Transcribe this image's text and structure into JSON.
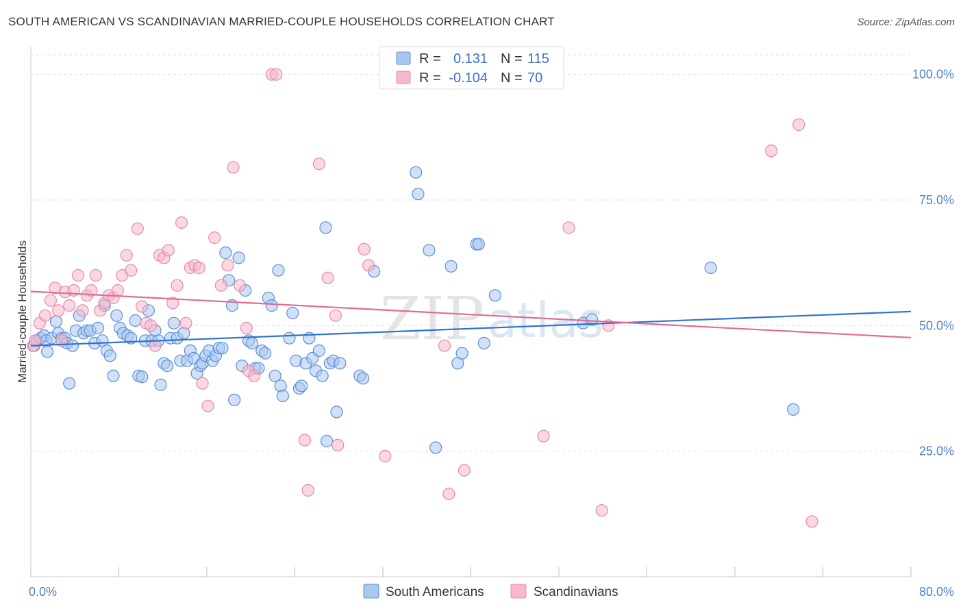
{
  "title": "SOUTH AMERICAN VS SCANDINAVIAN MARRIED-COUPLE HOUSEHOLDS CORRELATION CHART",
  "source": "Source: ZipAtlas.com",
  "watermark": {
    "zip": "ZIP",
    "atlas": "atlas"
  },
  "colors": {
    "blue_fill": "#a9c8f0",
    "blue_stroke": "#5b8ed6",
    "blue_line": "#2f72d0",
    "pink_fill": "#f5b8cc",
    "pink_stroke": "#e889a8",
    "pink_line": "#e06b95",
    "grid": "#dddddd",
    "axis_text": "#4a7fc8"
  },
  "legend": {
    "rows": [
      {
        "r_label": "R =",
        "r_value": "0.131",
        "n_label": "N =",
        "n_value": "115"
      },
      {
        "r_label": "R =",
        "r_value": "-0.104",
        "n_label": "N =",
        "n_value": "70"
      }
    ]
  },
  "chart_data": {
    "type": "scatter",
    "ylabel": "Married-couple Households",
    "xlim": [
      0,
      80
    ],
    "ylim": [
      0,
      105
    ],
    "x_tick_labels": [
      "0.0%",
      "80.0%"
    ],
    "y_ticks": [
      25,
      50,
      75,
      100
    ],
    "y_tick_labels": [
      "25.0%",
      "50.0%",
      "75.0%",
      "100.0%"
    ],
    "grid": "horizontal dashed",
    "legend_position": "top-center",
    "series": [
      {
        "name": "South Americans",
        "color": "#a9c8f0",
        "trend": {
          "x": [
            0,
            80
          ],
          "y": [
            46.0,
            52.8
          ]
        },
        "points": [
          [
            0.3,
            46
          ],
          [
            0.6,
            47
          ],
          [
            0.9,
            47.5
          ],
          [
            1.2,
            48
          ],
          [
            1.4,
            47
          ],
          [
            1.5,
            44.8
          ],
          [
            1.9,
            47.5
          ],
          [
            2.3,
            50.8
          ],
          [
            2.5,
            48.5
          ],
          [
            2.8,
            47.5
          ],
          [
            3.1,
            47.5
          ],
          [
            3.3,
            46.5
          ],
          [
            3.5,
            38.5
          ],
          [
            3.8,
            46
          ],
          [
            4.1,
            49
          ],
          [
            4.4,
            52
          ],
          [
            4.8,
            48.5
          ],
          [
            5.1,
            49
          ],
          [
            5.4,
            49
          ],
          [
            5.8,
            46.5
          ],
          [
            6.1,
            49.5
          ],
          [
            6.5,
            47
          ],
          [
            6.7,
            54
          ],
          [
            6.9,
            45
          ],
          [
            7.2,
            44
          ],
          [
            7.5,
            40
          ],
          [
            7.8,
            52
          ],
          [
            8.1,
            49.5
          ],
          [
            8.4,
            48.5
          ],
          [
            8.8,
            48
          ],
          [
            9.1,
            47.5
          ],
          [
            9.5,
            51
          ],
          [
            9.8,
            40
          ],
          [
            10.1,
            39.8
          ],
          [
            10.4,
            47
          ],
          [
            10.7,
            53
          ],
          [
            11.0,
            47
          ],
          [
            11.3,
            49
          ],
          [
            11.6,
            47
          ],
          [
            11.8,
            38.2
          ],
          [
            12.1,
            42.5
          ],
          [
            12.4,
            42
          ],
          [
            12.7,
            47.5
          ],
          [
            13.0,
            50.5
          ],
          [
            13.3,
            47.5
          ],
          [
            13.6,
            43
          ],
          [
            13.9,
            48.5
          ],
          [
            14.2,
            43
          ],
          [
            14.5,
            45
          ],
          [
            14.8,
            43.5
          ],
          [
            15.1,
            40.5
          ],
          [
            15.4,
            42
          ],
          [
            15.6,
            42.5
          ],
          [
            15.9,
            44
          ],
          [
            16.2,
            45
          ],
          [
            16.5,
            43
          ],
          [
            16.8,
            44
          ],
          [
            17.1,
            45.5
          ],
          [
            17.4,
            45.5
          ],
          [
            17.7,
            64.5
          ],
          [
            18.0,
            59
          ],
          [
            18.3,
            54
          ],
          [
            18.5,
            35.2
          ],
          [
            18.9,
            63.5
          ],
          [
            19.2,
            42
          ],
          [
            19.5,
            57
          ],
          [
            19.8,
            47
          ],
          [
            20.1,
            46.5
          ],
          [
            20.4,
            41.5
          ],
          [
            20.7,
            41.5
          ],
          [
            21.0,
            45
          ],
          [
            21.3,
            44.5
          ],
          [
            21.6,
            55.5
          ],
          [
            21.9,
            54
          ],
          [
            22.2,
            40
          ],
          [
            22.5,
            61
          ],
          [
            22.7,
            38
          ],
          [
            22.9,
            36
          ],
          [
            23.5,
            47.5
          ],
          [
            23.8,
            52.5
          ],
          [
            24.1,
            43
          ],
          [
            24.4,
            37.5
          ],
          [
            24.6,
            38
          ],
          [
            25.0,
            42.5
          ],
          [
            25.3,
            47.5
          ],
          [
            25.6,
            43.5
          ],
          [
            25.9,
            41
          ],
          [
            26.2,
            45
          ],
          [
            26.5,
            40
          ],
          [
            26.8,
            69.5
          ],
          [
            26.9,
            27
          ],
          [
            27.2,
            42.5
          ],
          [
            27.5,
            43
          ],
          [
            27.8,
            32.8
          ],
          [
            28.1,
            42.5
          ],
          [
            29.9,
            40
          ],
          [
            30.2,
            39.5
          ],
          [
            31.2,
            60.8
          ],
          [
            35.0,
            80.5
          ],
          [
            35.2,
            76.2
          ],
          [
            36.2,
            65
          ],
          [
            36.8,
            25.7
          ],
          [
            38.2,
            61.8
          ],
          [
            38.8,
            42.5
          ],
          [
            39.2,
            44.5
          ],
          [
            40.5,
            66.2
          ],
          [
            40.7,
            66.2
          ],
          [
            41.2,
            46.5
          ],
          [
            42.2,
            56
          ],
          [
            50.2,
            50.5
          ],
          [
            51.0,
            51.2
          ],
          [
            61.8,
            61.5
          ],
          [
            69.3,
            33.3
          ]
        ]
      },
      {
        "name": "Scandinavians",
        "color": "#f5b8cc",
        "trend": {
          "x": [
            0,
            80
          ],
          "y": [
            56.8,
            47.6
          ]
        },
        "points": [
          [
            0.2,
            46
          ],
          [
            0.4,
            47
          ],
          [
            0.8,
            50.5
          ],
          [
            1.3,
            52
          ],
          [
            1.8,
            55
          ],
          [
            2.2,
            57.5
          ],
          [
            2.5,
            53
          ],
          [
            2.8,
            47
          ],
          [
            3.1,
            56.7
          ],
          [
            3.5,
            54
          ],
          [
            3.9,
            57
          ],
          [
            4.3,
            60
          ],
          [
            4.7,
            53
          ],
          [
            5.1,
            56
          ],
          [
            5.5,
            57
          ],
          [
            5.9,
            60
          ],
          [
            6.3,
            53
          ],
          [
            6.7,
            54.5
          ],
          [
            7.1,
            56
          ],
          [
            7.5,
            55.5
          ],
          [
            7.9,
            57
          ],
          [
            8.3,
            60
          ],
          [
            8.7,
            64
          ],
          [
            9.1,
            61
          ],
          [
            9.7,
            69.3
          ],
          [
            10.1,
            53.8
          ],
          [
            10.5,
            50.5
          ],
          [
            10.9,
            50
          ],
          [
            11.3,
            46
          ],
          [
            11.7,
            64
          ],
          [
            12.1,
            63.5
          ],
          [
            12.5,
            65
          ],
          [
            12.9,
            54.5
          ],
          [
            13.3,
            58
          ],
          [
            13.7,
            70.5
          ],
          [
            14.1,
            50.5
          ],
          [
            14.5,
            61.5
          ],
          [
            14.9,
            62
          ],
          [
            15.3,
            61.5
          ],
          [
            15.6,
            38.5
          ],
          [
            16.1,
            34
          ],
          [
            16.7,
            67.5
          ],
          [
            17.3,
            58
          ],
          [
            17.9,
            62
          ],
          [
            18.4,
            81.5
          ],
          [
            19.0,
            58
          ],
          [
            19.6,
            49.5
          ],
          [
            19.8,
            41
          ],
          [
            20.3,
            40
          ],
          [
            21.9,
            100
          ],
          [
            22.3,
            100
          ],
          [
            24.9,
            27.2
          ],
          [
            25.2,
            17.2
          ],
          [
            26.2,
            82.2
          ],
          [
            27.0,
            59.5
          ],
          [
            27.7,
            52
          ],
          [
            27.9,
            26.2
          ],
          [
            30.3,
            65.2
          ],
          [
            30.7,
            62
          ],
          [
            32.2,
            24
          ],
          [
            37.6,
            46
          ],
          [
            38.0,
            16.5
          ],
          [
            39.4,
            21.2
          ],
          [
            46.6,
            28
          ],
          [
            48.9,
            69.5
          ],
          [
            51.9,
            13.2
          ],
          [
            52.5,
            50
          ],
          [
            67.3,
            84.8
          ],
          [
            69.8,
            90
          ],
          [
            71.0,
            11
          ]
        ]
      }
    ]
  },
  "bottom_legend": [
    {
      "label": "South Americans"
    },
    {
      "label": "Scandinavians"
    }
  ]
}
